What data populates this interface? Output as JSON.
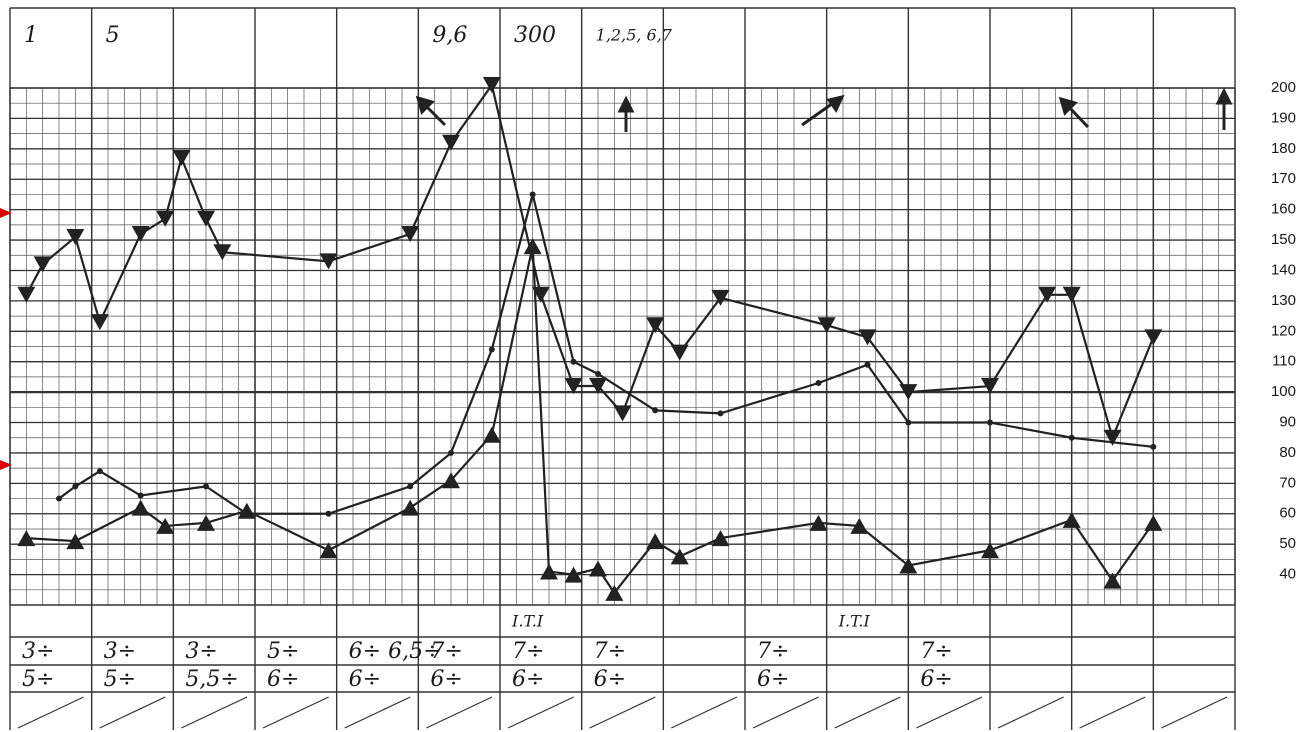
{
  "chart_data": {
    "type": "line",
    "xlim": [
      0,
      15
    ],
    "ylim": [
      30,
      200
    ],
    "yticks": [
      40,
      50,
      60,
      70,
      80,
      90,
      100,
      110,
      120,
      130,
      140,
      150,
      160,
      170,
      180,
      190,
      200
    ],
    "grid": true,
    "series": [
      {
        "color": "#222222",
        "marker": "triangle-down",
        "x": [
          0.2,
          0.4,
          0.8,
          1.1,
          1.6,
          1.9,
          2.1,
          2.4,
          2.6,
          3.9,
          4.9,
          5.4,
          5.9,
          6.5,
          6.9,
          7.2,
          7.5,
          7.9,
          8.2,
          8.7,
          10.0,
          10.5,
          11.0,
          12.0,
          12.7,
          13.0,
          13.5,
          14.0
        ],
        "values": [
          132,
          142,
          151,
          123,
          152,
          157,
          177,
          157,
          146,
          143,
          152,
          182,
          201,
          132,
          102,
          102,
          93,
          122,
          113,
          131,
          122,
          118,
          100,
          102,
          132,
          132,
          85,
          118
        ]
      },
      {
        "color": "#222222",
        "marker": "triangle-up",
        "x": [
          0.2,
          0.8,
          1.6,
          1.9,
          2.4,
          2.9,
          3.9,
          4.9,
          5.4,
          5.9,
          6.4,
          6.6,
          6.9,
          7.2,
          7.4,
          7.9,
          8.2,
          8.7,
          9.9,
          10.4,
          11.0,
          12.0,
          13.0,
          13.5,
          14.0
        ],
        "values": [
          52,
          51,
          62,
          56,
          57,
          61,
          48,
          62,
          71,
          86,
          148,
          41,
          40,
          42,
          34,
          51,
          46,
          52,
          57,
          56,
          43,
          48,
          58,
          38,
          57
        ]
      },
      {
        "color": "#222222",
        "marker": "dot",
        "x": [
          0.6,
          0.8,
          1.1,
          1.6,
          2.4,
          2.9,
          3.9,
          4.9,
          5.4,
          5.9,
          6.4,
          6.9,
          7.2,
          7.9,
          8.7,
          9.9,
          10.5,
          11.0,
          12.0,
          13.0,
          14.0
        ],
        "values": [
          65,
          69,
          74,
          66,
          69,
          60,
          60,
          69,
          80,
          114,
          165,
          110,
          106,
          94,
          93,
          103,
          109,
          90,
          90,
          85,
          82
        ]
      }
    ],
    "header": [
      "1",
      "5",
      null,
      null,
      null,
      "9,6",
      "300",
      "1,2,5, 6,7",
      null,
      null,
      null,
      null,
      null,
      null,
      null
    ],
    "rows": [
      [
        null,
        null,
        null,
        null,
        null,
        null,
        "I.T.I",
        null,
        null,
        null,
        "I.T.I",
        null,
        null,
        null,
        null
      ],
      [
        "3÷",
        "3÷",
        "3÷",
        "5÷",
        "6÷ 6,5÷",
        "7÷",
        "7÷",
        "7÷",
        null,
        "7÷",
        null,
        "7÷",
        null,
        null,
        null
      ],
      [
        "5÷",
        "5÷",
        "5,5÷",
        "6÷",
        "6÷",
        "6÷",
        "6÷",
        "6÷",
        null,
        "6÷",
        null,
        "6÷",
        null,
        null,
        null
      ]
    ]
  }
}
